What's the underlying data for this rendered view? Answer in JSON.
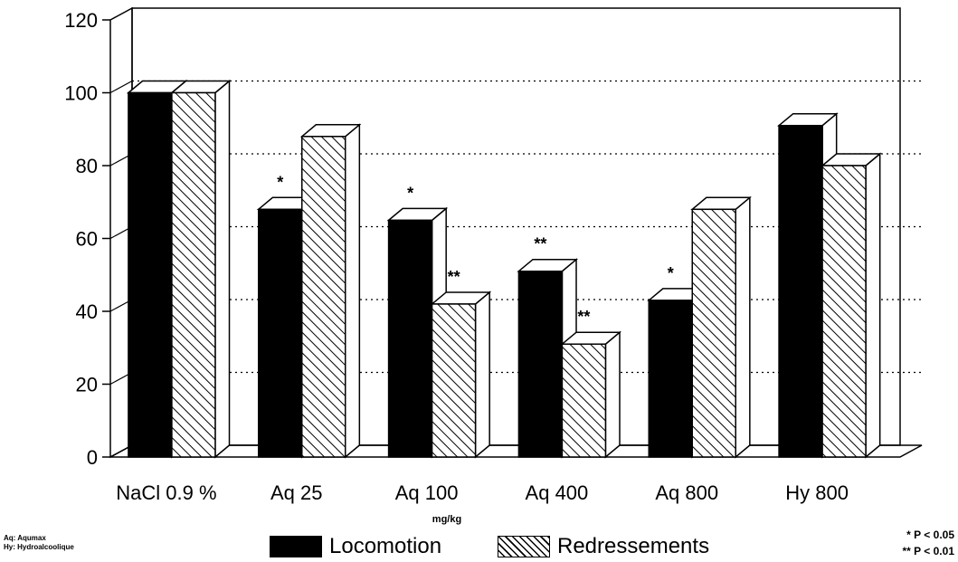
{
  "chart_data": {
    "type": "bar",
    "categories": [
      "NaCl 0.9 %",
      "Aq 25",
      "Aq 100",
      "Aq 400",
      "Aq 800",
      "Hy 800"
    ],
    "x_unit": "mg/kg",
    "ylim": [
      0,
      120
    ],
    "yticks": [
      0,
      20,
      40,
      60,
      80,
      100,
      120
    ],
    "grid": "dotted horizontal at 20, 40, 60, 80, 100",
    "style": "3d",
    "series": [
      {
        "name": "Locomotion",
        "fill": "solid-black",
        "values": [
          100,
          68,
          65,
          51,
          43,
          91
        ],
        "annotations": [
          "",
          "*",
          "*",
          "**",
          "*",
          ""
        ]
      },
      {
        "name": "Redressements",
        "fill": "hatched",
        "values": [
          100,
          88,
          42,
          31,
          68,
          80
        ],
        "annotations": [
          "",
          "",
          "**",
          "**",
          "",
          ""
        ]
      }
    ],
    "legend_position": "bottom-center"
  },
  "abbreviations": {
    "line1": "Aq: Aqumax",
    "line2": "Hy: Hydroalcoolique"
  },
  "significance": {
    "line1": "* P < 0.05",
    "line2": "** P < 0.01"
  },
  "colors": {
    "bar_solid": "#000000",
    "hatch": "#000000",
    "background": "#ffffff"
  }
}
